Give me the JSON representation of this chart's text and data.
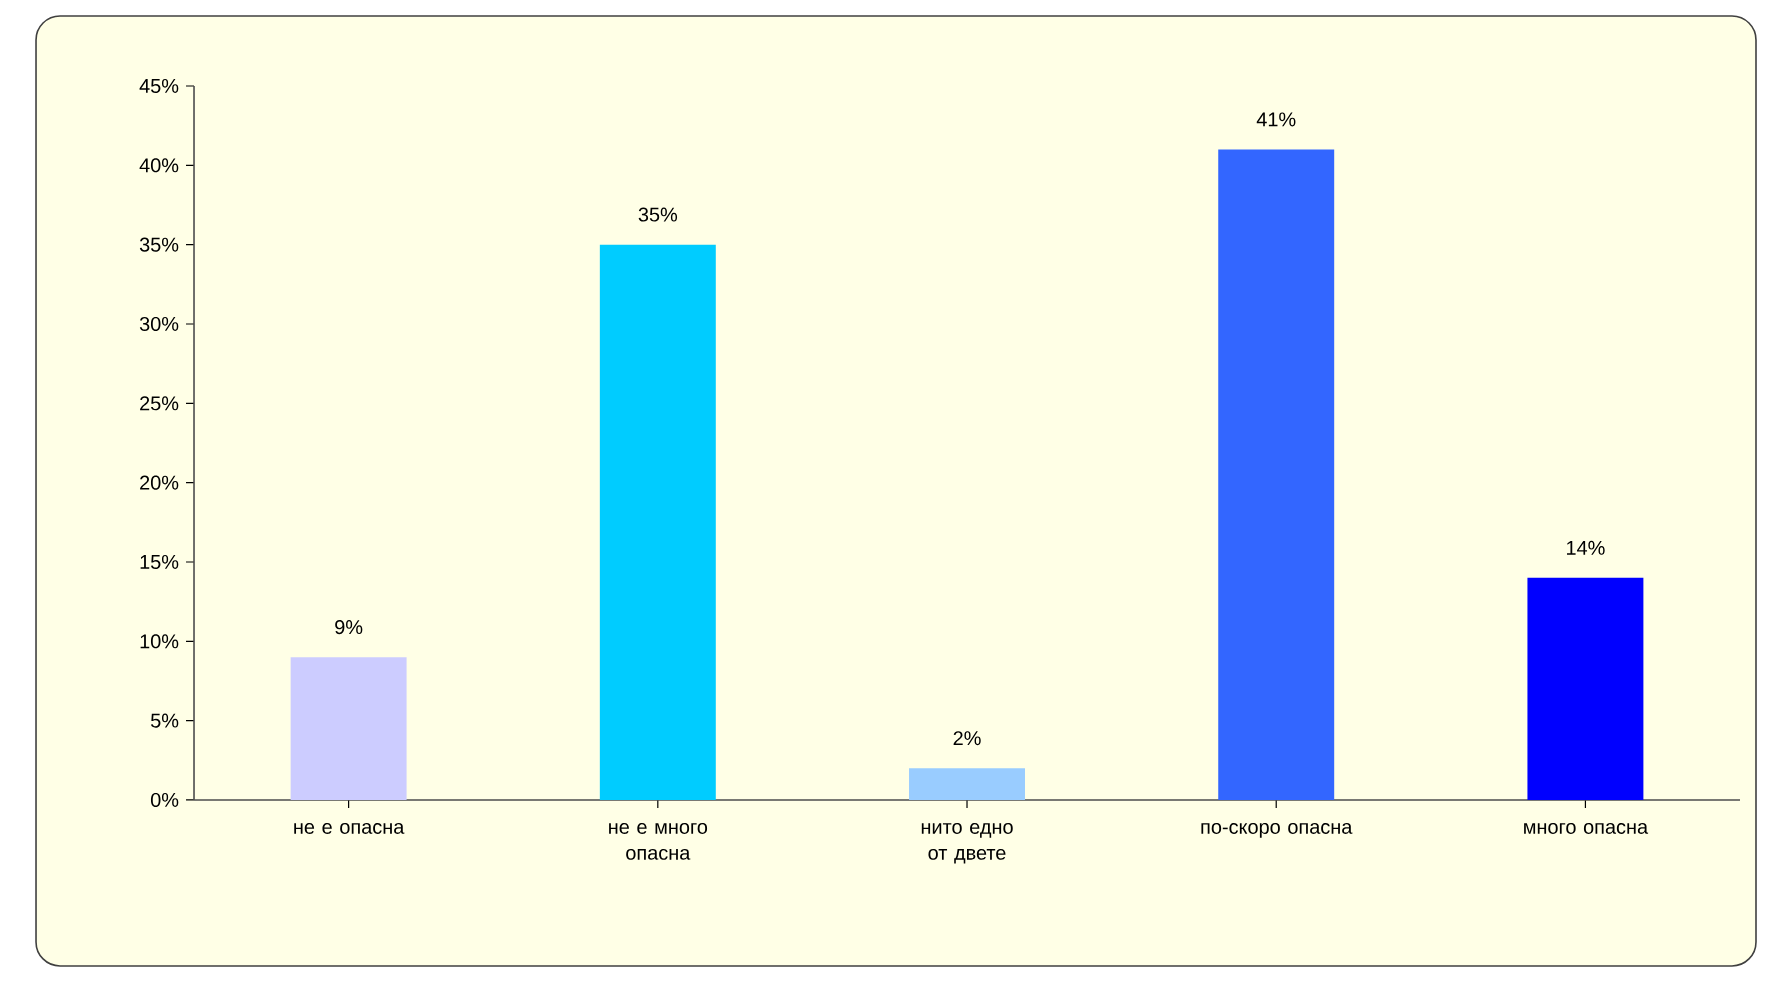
{
  "chart_data": {
    "type": "bar",
    "categories": [
      "не е опасна",
      "не е много опасна",
      "нито едно от двете",
      "по-скоро опасна",
      "много опасна"
    ],
    "values": [
      9,
      35,
      2,
      41,
      14
    ],
    "colors": [
      "#ccccff",
      "#00ccff",
      "#99ccff",
      "#3366ff",
      "#0000ff"
    ],
    "value_labels": [
      "9%",
      "35%",
      "2%",
      "41%",
      "14%"
    ],
    "ylim": [
      0,
      45
    ],
    "yticks": [
      {
        "value": 0,
        "label": "0%"
      },
      {
        "value": 5,
        "label": "5%"
      },
      {
        "value": 10,
        "label": "10%"
      },
      {
        "value": 15,
        "label": "15%"
      },
      {
        "value": 20,
        "label": "20%"
      },
      {
        "value": 25,
        "label": "25%"
      },
      {
        "value": 30,
        "label": "30%"
      },
      {
        "value": 35,
        "label": "35%"
      },
      {
        "value": 40,
        "label": "40%"
      },
      {
        "value": 45,
        "label": "45%"
      }
    ],
    "grid": false
  }
}
